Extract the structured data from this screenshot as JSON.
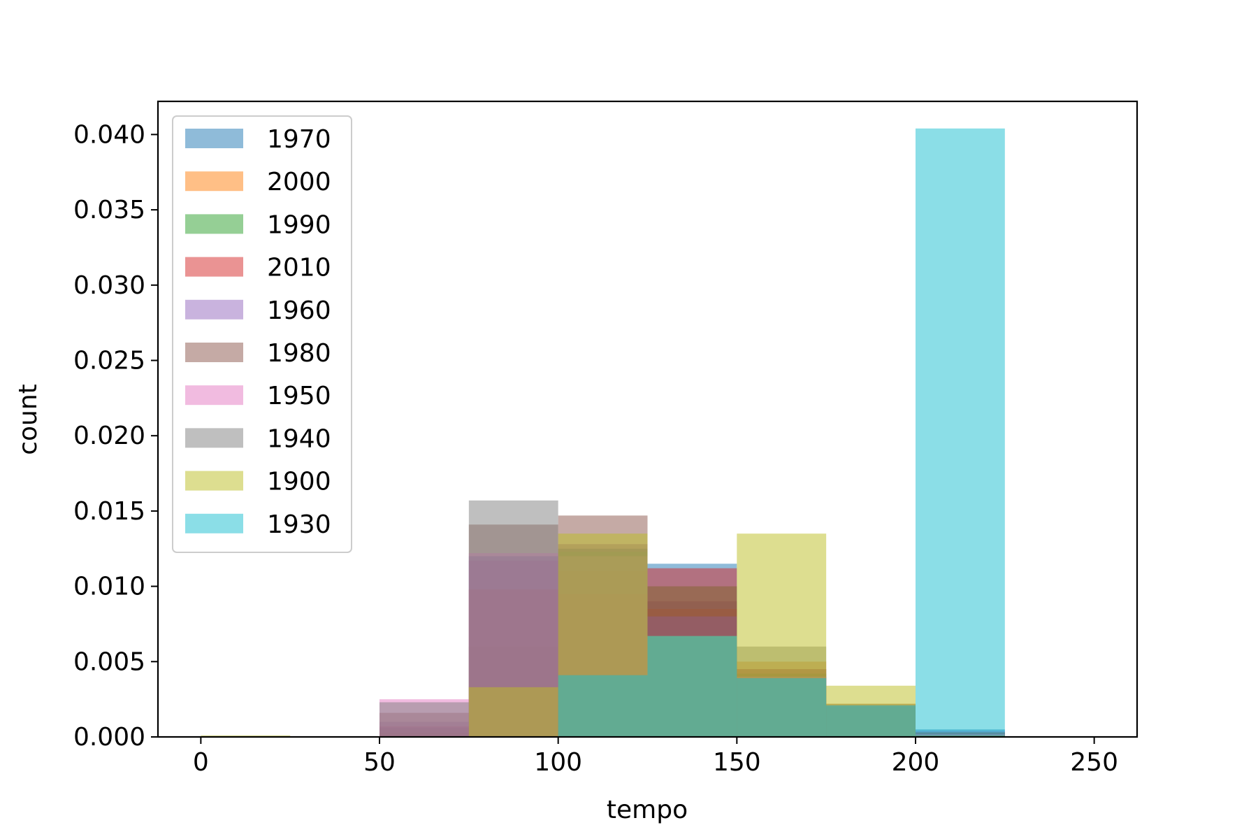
{
  "chart_data": {
    "type": "bar",
    "histtype": "overlapping-histogram",
    "xlabel": "tempo",
    "ylabel": "count",
    "xlim": [
      -12,
      262
    ],
    "ylim": [
      0,
      0.0422
    ],
    "xticks": [
      0,
      50,
      100,
      150,
      200,
      250
    ],
    "xtick_labels": [
      "0",
      "50",
      "100",
      "150",
      "200",
      "250"
    ],
    "yticks": [
      0,
      0.005,
      0.01,
      0.015,
      0.02,
      0.025,
      0.03,
      0.035,
      0.04
    ],
    "ytick_labels": [
      "0.000",
      "0.005",
      "0.010",
      "0.015",
      "0.020",
      "0.025",
      "0.030",
      "0.035",
      "0.040"
    ],
    "bin_edges": [
      0,
      25,
      50,
      75,
      100,
      125,
      150,
      175,
      200,
      225
    ],
    "opacity": 0.5,
    "legend_position": "upper-left",
    "series": [
      {
        "name": "1970",
        "color": "#1f77b4",
        "values": [
          0,
          0,
          0.0006,
          0.012,
          0.0125,
          0.0115,
          0.0045,
          0.0021,
          0.0005
        ]
      },
      {
        "name": "2000",
        "color": "#ff7f0e",
        "values": [
          0,
          0,
          0.0002,
          0.0034,
          0.011,
          0.0085,
          0.005,
          0.0022,
          0.0002
        ]
      },
      {
        "name": "1990",
        "color": "#2ca02c",
        "values": [
          0,
          0,
          0.0003,
          0.006,
          0.012,
          0.01,
          0.0042,
          0.002,
          0.0003
        ]
      },
      {
        "name": "2010",
        "color": "#d62728",
        "values": [
          0,
          0,
          0.0007,
          0.0098,
          0.0095,
          0.0112,
          0.0045,
          0.0021,
          0.0003
        ]
      },
      {
        "name": "1960",
        "color": "#9467bd",
        "values": [
          0,
          0,
          0.001,
          0.0117,
          0.0128,
          0.008,
          0.004,
          0.002,
          0.0004
        ]
      },
      {
        "name": "1980",
        "color": "#8c564b",
        "values": [
          0,
          0,
          0.0016,
          0.0141,
          0.0147,
          0.009,
          0.004,
          0.002,
          0.0003
        ]
      },
      {
        "name": "1950",
        "color": "#e377c2",
        "values": [
          0,
          0,
          0.0025,
          0.0122,
          0.012,
          0.0067,
          0.004,
          0.0021,
          0.0002
        ]
      },
      {
        "name": "1940",
        "color": "#7f7f7f",
        "values": [
          0,
          0,
          0.0023,
          0.0157,
          0.0123,
          0.0067,
          0.006,
          0.0022,
          0.0001
        ]
      },
      {
        "name": "1900",
        "color": "#bcbd22",
        "values": [
          0.0001,
          0,
          0,
          0.0033,
          0.0135,
          0.0067,
          0.0135,
          0.0034,
          0.0001
        ]
      },
      {
        "name": "1930",
        "color": "#17becf",
        "values": [
          0,
          0,
          0,
          0,
          0.0041,
          0.0067,
          0.0039,
          0.0021,
          0.0404
        ]
      }
    ]
  }
}
